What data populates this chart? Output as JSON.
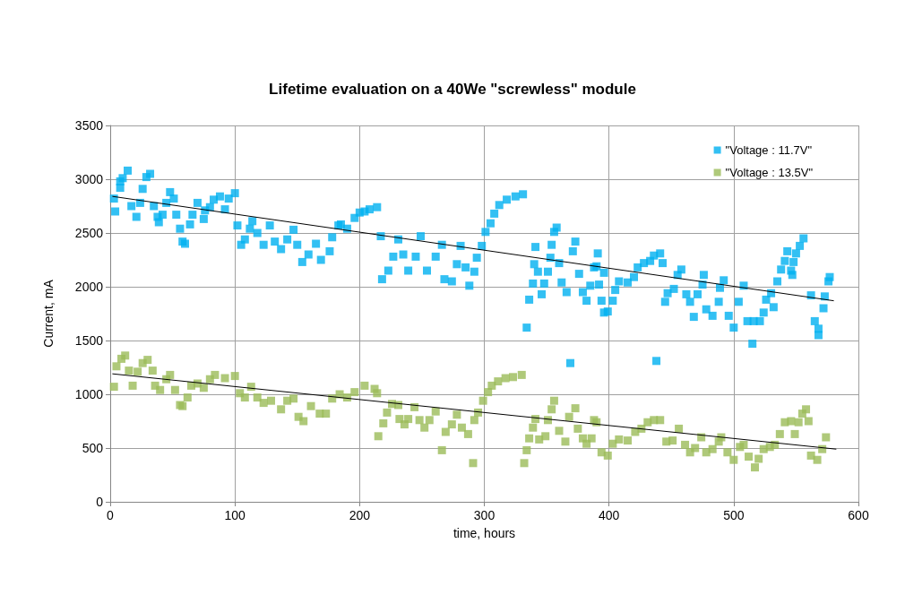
{
  "chart_data": {
    "type": "scatter",
    "title": "Lifetime evaluation on a 40We \"screwless\" module",
    "xlabel": "time, hours",
    "ylabel": "Current, mA",
    "xlim": [
      0,
      600
    ],
    "ylim": [
      0,
      3500
    ],
    "xticks": [
      0,
      100,
      200,
      300,
      400,
      500,
      600
    ],
    "yticks": [
      0,
      500,
      1000,
      1500,
      2000,
      2500,
      3000,
      3500
    ],
    "grid": true,
    "legend": "top right",
    "marker": "square",
    "series": [
      {
        "name": "\"Voltage : 11.7V\"",
        "color": "#00b0f0",
        "x": [
          3,
          4,
          8,
          8,
          10,
          14,
          17,
          21,
          24,
          26,
          29,
          32,
          35,
          38,
          39,
          42,
          45,
          48,
          51,
          53,
          56,
          58,
          60,
          64,
          66,
          70,
          75,
          76,
          80,
          83,
          88,
          92,
          95,
          100,
          102,
          105,
          108,
          112,
          114,
          118,
          123,
          128,
          132,
          137,
          142,
          147,
          150,
          154,
          159,
          165,
          169,
          176,
          178,
          183,
          185,
          190,
          196,
          200,
          204,
          208,
          214,
          217,
          218,
          223,
          227,
          231,
          235,
          239,
          245,
          249,
          254,
          261,
          266,
          268,
          274,
          278,
          281,
          285,
          288,
          292,
          294,
          298,
          301,
          305,
          308,
          312,
          318,
          325,
          331,
          334,
          336,
          339,
          340,
          341,
          343,
          346,
          348,
          351,
          353,
          354,
          356,
          358,
          360,
          362,
          366,
          369,
          371,
          373,
          376,
          379,
          382,
          385,
          388,
          390,
          391,
          392,
          394,
          396,
          396,
          399,
          403,
          405,
          408,
          415,
          420,
          423,
          428,
          433,
          436,
          438,
          441,
          443,
          445,
          447,
          452,
          455,
          458,
          462,
          465,
          468,
          471,
          475,
          476,
          478,
          483,
          488,
          489,
          492,
          496,
          500,
          504,
          508,
          511,
          515,
          516,
          521,
          524,
          526,
          530,
          532,
          535,
          538,
          541,
          543,
          546,
          547,
          548,
          550,
          553,
          556,
          562,
          565,
          568,
          568,
          572,
          573,
          576,
          577
        ],
        "values": [
          2820,
          2700,
          2920,
          2980,
          3010,
          3080,
          2750,
          2650,
          2780,
          2910,
          3020,
          3050,
          2750,
          2650,
          2600,
          2670,
          2780,
          2880,
          2820,
          2670,
          2540,
          2420,
          2400,
          2580,
          2670,
          2780,
          2630,
          2710,
          2740,
          2810,
          2840,
          2720,
          2820,
          2870,
          2570,
          2390,
          2440,
          2540,
          2610,
          2500,
          2390,
          2570,
          2420,
          2350,
          2440,
          2530,
          2390,
          2230,
          2300,
          2400,
          2250,
          2330,
          2460,
          2570,
          2580,
          2540,
          2640,
          2690,
          2700,
          2720,
          2740,
          2470,
          2070,
          2150,
          2280,
          2440,
          2300,
          2150,
          2280,
          2470,
          2150,
          2280,
          2390,
          2070,
          2050,
          2210,
          2380,
          2180,
          2010,
          2140,
          2270,
          2380,
          2510,
          2590,
          2680,
          2760,
          2810,
          2840,
          2860,
          1620,
          1880,
          2030,
          2210,
          2370,
          2140,
          1930,
          2030,
          2140,
          2270,
          2390,
          2510,
          2550,
          2220,
          2040,
          1950,
          1290,
          2330,
          2420,
          2120,
          1950,
          1870,
          2010,
          2180,
          2190,
          2310,
          2020,
          1870,
          1760,
          2130,
          1770,
          1870,
          1970,
          2050,
          2040,
          2090,
          2180,
          2220,
          2240,
          2290,
          1310,
          2310,
          2220,
          1860,
          1940,
          1980,
          2110,
          2160,
          1930,
          1860,
          1720,
          1930,
          2020,
          2110,
          1790,
          1730,
          1860,
          1990,
          2060,
          1730,
          1620,
          1860,
          2010,
          1680,
          1470,
          1680,
          1680,
          1760,
          1880,
          1940,
          1810,
          2050,
          2160,
          2240,
          2330,
          2150,
          2110,
          2230,
          2310,
          2380,
          2450,
          1920,
          1680,
          1610,
          1550,
          1800,
          1910,
          2050,
          2090
        ]
      },
      {
        "name": "\"Voltage : 13.5V\"",
        "color": "#9bbb59",
        "x": [
          3,
          5,
          9,
          12,
          15,
          18,
          22,
          26,
          30,
          34,
          36,
          40,
          45,
          48,
          52,
          56,
          58,
          62,
          65,
          70,
          75,
          80,
          84,
          92,
          100,
          104,
          108,
          113,
          118,
          123,
          129,
          137,
          142,
          147,
          151,
          155,
          161,
          168,
          173,
          178,
          184,
          190,
          196,
          204,
          212,
          214,
          215,
          219,
          222,
          226,
          231,
          232,
          236,
          239,
          244,
          248,
          252,
          256,
          261,
          266,
          269,
          274,
          278,
          282,
          287,
          291,
          292,
          295,
          299,
          303,
          306,
          311,
          317,
          323,
          330,
          332,
          334,
          336,
          339,
          341,
          344,
          349,
          351,
          354,
          356,
          360,
          365,
          368,
          373,
          375,
          379,
          382,
          386,
          388,
          390,
          394,
          399,
          403,
          408,
          415,
          421,
          426,
          431,
          436,
          441,
          446,
          451,
          456,
          461,
          465,
          469,
          474,
          478,
          483,
          488,
          490,
          495,
          500,
          505,
          508,
          512,
          517,
          520,
          524,
          529,
          533,
          537,
          541,
          546,
          549,
          552,
          555,
          558,
          560,
          562,
          567,
          571,
          574
        ],
        "values": [
          1070,
          1260,
          1330,
          1360,
          1220,
          1080,
          1210,
          1290,
          1320,
          1220,
          1080,
          1040,
          1140,
          1180,
          1040,
          900,
          890,
          970,
          1080,
          1100,
          1060,
          1140,
          1180,
          1150,
          1170,
          1010,
          970,
          1070,
          970,
          920,
          940,
          860,
          940,
          960,
          790,
          750,
          890,
          820,
          820,
          960,
          1000,
          970,
          1020,
          1080,
          1050,
          1010,
          610,
          730,
          830,
          910,
          900,
          770,
          720,
          770,
          880,
          760,
          690,
          760,
          840,
          480,
          650,
          720,
          810,
          690,
          630,
          360,
          760,
          830,
          940,
          1020,
          1080,
          1120,
          1150,
          1160,
          1180,
          360,
          480,
          590,
          690,
          770,
          580,
          610,
          760,
          860,
          940,
          660,
          560,
          790,
          870,
          680,
          590,
          540,
          590,
          760,
          740,
          460,
          430,
          540,
          580,
          570,
          650,
          680,
          740,
          760,
          760,
          560,
          570,
          680,
          530,
          460,
          500,
          600,
          460,
          490,
          560,
          600,
          460,
          390,
          510,
          530,
          420,
          320,
          400,
          490,
          510,
          530,
          630,
          740,
          750,
          630,
          740,
          820,
          860,
          750,
          430,
          390,
          490,
          600
        ]
      },
      {
        "type": "line",
        "marker": "none",
        "color": "#000000",
        "x": [
          2,
          580
        ],
        "values": [
          2840,
          1870
        ]
      },
      {
        "type": "line",
        "marker": "none",
        "color": "#000000",
        "x": [
          2,
          582
        ],
        "values": [
          1190,
          490
        ]
      }
    ]
  }
}
